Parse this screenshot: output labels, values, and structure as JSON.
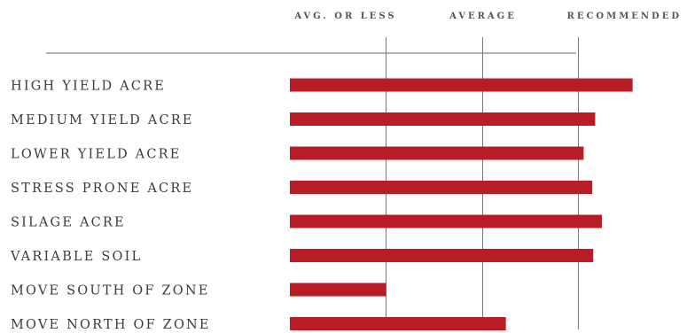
{
  "chart_data": {
    "type": "bar",
    "orientation": "horizontal",
    "column_headers": [
      "AVG. OR LESS",
      "AVERAGE",
      "RECOMMENDED"
    ],
    "column_boundaries": [
      0,
      1,
      2,
      3
    ],
    "categories": [
      "HIGH YIELD ACRE",
      "MEDIUM YIELD ACRE",
      "LOWER YIELD ACRE",
      "STRESS PRONE ACRE",
      "SILAGE ACRE",
      "VARIABLE SOIL",
      "MOVE SOUTH OF ZONE",
      "MOVE NORTH OF ZONE"
    ],
    "values": [
      3.57,
      3.18,
      3.06,
      3.15,
      3.25,
      3.16,
      1.0,
      2.25
    ],
    "xlim": [
      0,
      3.6
    ],
    "bar_color": "#b81c24",
    "grid": true
  }
}
